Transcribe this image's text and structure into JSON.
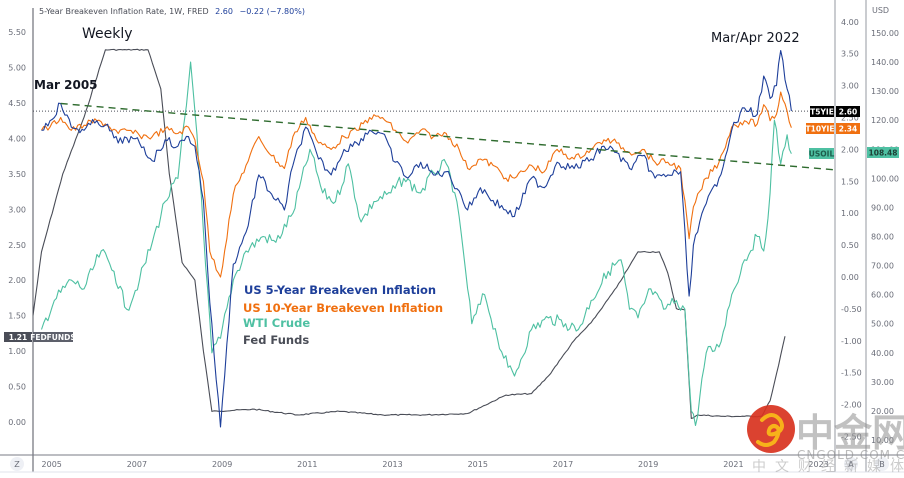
{
  "header": {
    "title": "5-Year Breakeven Inflation Rate, 1W, FRED",
    "last": "2.60",
    "change": "−0.22 (−7.80%)"
  },
  "annotations": {
    "weekly": "Weekly",
    "mar2005": "Mar 2005",
    "marapr2022": "Mar/Apr 2022"
  },
  "legend": [
    {
      "label": "US 5-Year Breakeven Inflation",
      "color": "#1e3f9a"
    },
    {
      "label": "US 10-Year Breakeven Inflation",
      "color": "#f07010"
    },
    {
      "label": "WTI Crude",
      "color": "#4ec0a2"
    },
    {
      "label": "Fed Funds",
      "color": "#4a4d57"
    }
  ],
  "badges": {
    "fedfunds": {
      "value": "1.21",
      "label": "FEDFUNDS"
    },
    "t5yie": {
      "label": "T5YIE",
      "value": "2.60"
    },
    "t10yie": {
      "label": "T10YIE",
      "value": "2.34"
    },
    "usoil": {
      "label": "USOIL",
      "value": "108.48"
    }
  },
  "bottom_bar": {
    "z_button": "Z",
    "a_button": "A",
    "b_button": "B"
  },
  "watermark": {
    "cn": "中金网",
    "en": "CNGOLD.COM.CN",
    "sub": "中文财经新媒体"
  },
  "colors": {
    "t5yie": "#1e3f9a",
    "t10yie": "#f07010",
    "wti": "#4ec0a2",
    "fedfunds": "#4a4d57",
    "trendline": "#2e6b2e"
  },
  "chart_data": {
    "type": "line",
    "title": "5-Year Breakeven Inflation Rate, 1W, FRED",
    "x_ticks": [
      "2005",
      "2007",
      "2009",
      "2011",
      "2013",
      "2015",
      "2017",
      "2019",
      "2021",
      "2023"
    ],
    "x_range": [
      2004.8,
      2023.6
    ],
    "axes": {
      "left": {
        "ticks": [
          "5.50",
          "5.00",
          "4.50",
          "4.00",
          "3.50",
          "3.00",
          "2.50",
          "2.00",
          "1.50",
          "1.00",
          "0.50",
          "0.00"
        ],
        "range": [
          -0.3,
          5.6
        ],
        "series": [
          "Fed Funds"
        ]
      },
      "right_a": {
        "ticks": [
          "4.00",
          "3.50",
          "3.00",
          "2.50",
          "2.00",
          "1.50",
          "1.00",
          "0.50",
          "0.00",
          "-0.50",
          "-1.00",
          "-1.50",
          "-2.00",
          "-2.50"
        ],
        "range": [
          -2.7,
          4.2
        ],
        "series": [
          "US 5-Year Breakeven Inflation",
          "US 10-Year Breakeven Inflation"
        ]
      },
      "right_b": {
        "unit": "USD",
        "ticks": [
          "150.00",
          "140.00",
          "130.00",
          "120.00",
          "110.00",
          "100.00",
          "90.00",
          "80.00",
          "70.00",
          "60.00",
          "50.00",
          "40.00",
          "30.00",
          "20.00",
          "10.00"
        ],
        "range": [
          5,
          155
        ],
        "series": [
          "WTI Crude"
        ]
      }
    },
    "series": [
      {
        "name": "US 5-Year Breakeven Inflation",
        "axis": "right_a",
        "x": [
          2005.0,
          2005.2,
          2005.45,
          2005.7,
          2006.0,
          2006.3,
          2006.5,
          2006.8,
          2007.0,
          2007.3,
          2007.6,
          2007.9,
          2008.2,
          2008.45,
          2008.6,
          2008.8,
          2008.95,
          2009.2,
          2009.5,
          2009.8,
          2010.1,
          2010.4,
          2010.7,
          2010.9,
          2011.2,
          2011.5,
          2011.8,
          2012.1,
          2012.4,
          2012.7,
          2013.0,
          2013.3,
          2013.6,
          2013.9,
          2014.2,
          2014.5,
          2014.8,
          2015.0,
          2015.3,
          2015.6,
          2015.9,
          2016.1,
          2016.5,
          2016.8,
          2017.1,
          2017.5,
          2017.9,
          2018.2,
          2018.5,
          2018.8,
          2019.1,
          2019.4,
          2019.7,
          2020.0,
          2020.2,
          2020.3,
          2020.6,
          2020.9,
          2021.2,
          2021.5,
          2021.8,
          2021.95,
          2022.1,
          2022.25,
          2022.35,
          2022.5,
          2022.6
        ],
        "y": [
          2.3,
          2.45,
          2.72,
          2.35,
          2.3,
          2.45,
          2.38,
          2.1,
          2.18,
          2.1,
          1.82,
          2.15,
          2.05,
          2.2,
          2.05,
          1.2,
          -0.4,
          -2.35,
          0.2,
          0.7,
          1.6,
          1.3,
          1.05,
          1.75,
          2.35,
          1.85,
          1.6,
          2.0,
          2.1,
          2.3,
          2.25,
          1.8,
          1.55,
          1.8,
          1.6,
          1.65,
          1.35,
          1.05,
          1.4,
          1.2,
          1.05,
          0.95,
          1.55,
          1.4,
          1.8,
          1.7,
          1.85,
          2.05,
          1.95,
          1.7,
          1.9,
          1.55,
          1.6,
          1.65,
          -0.3,
          0.5,
          1.15,
          1.55,
          2.3,
          2.65,
          2.55,
          3.15,
          2.8,
          3.0,
          3.55,
          2.95,
          2.6
        ]
      },
      {
        "name": "US 10-Year Breakeven Inflation",
        "axis": "right_a",
        "x": [
          2005.0,
          2005.2,
          2005.45,
          2005.7,
          2006.0,
          2006.3,
          2006.5,
          2006.8,
          2007.0,
          2007.3,
          2007.6,
          2007.9,
          2008.2,
          2008.45,
          2008.6,
          2008.8,
          2008.95,
          2009.2,
          2009.5,
          2009.8,
          2010.1,
          2010.4,
          2010.7,
          2010.9,
          2011.2,
          2011.5,
          2011.8,
          2012.1,
          2012.4,
          2012.7,
          2013.0,
          2013.3,
          2013.6,
          2013.9,
          2014.2,
          2014.5,
          2014.8,
          2015.0,
          2015.3,
          2015.6,
          2015.9,
          2016.1,
          2016.5,
          2016.8,
          2017.1,
          2017.5,
          2017.9,
          2018.2,
          2018.5,
          2018.8,
          2019.1,
          2019.4,
          2019.7,
          2020.0,
          2020.2,
          2020.3,
          2020.6,
          2020.9,
          2021.2,
          2021.5,
          2021.8,
          2021.95,
          2022.1,
          2022.25,
          2022.35,
          2022.5,
          2022.6
        ],
        "y": [
          2.3,
          2.35,
          2.5,
          2.3,
          2.38,
          2.45,
          2.4,
          2.25,
          2.3,
          2.22,
          2.2,
          2.32,
          2.25,
          2.35,
          2.15,
          1.5,
          0.4,
          0.0,
          1.3,
          1.75,
          2.2,
          1.9,
          1.7,
          2.2,
          2.5,
          2.1,
          2.0,
          2.2,
          2.3,
          2.5,
          2.5,
          2.3,
          2.1,
          2.3,
          2.2,
          2.25,
          2.0,
          1.7,
          1.85,
          1.75,
          1.55,
          1.55,
          1.75,
          1.65,
          2.0,
          1.85,
          2.0,
          2.15,
          2.1,
          1.95,
          2.0,
          1.8,
          1.8,
          1.7,
          0.6,
          1.1,
          1.55,
          1.8,
          2.35,
          2.45,
          2.4,
          2.7,
          2.45,
          2.55,
          2.9,
          2.6,
          2.34
        ]
      },
      {
        "name": "WTI Crude",
        "axis": "right_b",
        "x": [
          2005.0,
          2005.3,
          2005.7,
          2006.0,
          2006.4,
          2006.7,
          2007.0,
          2007.3,
          2007.6,
          2007.9,
          2008.2,
          2008.4,
          2008.5,
          2008.65,
          2008.85,
          2009.0,
          2009.2,
          2009.5,
          2009.8,
          2010.2,
          2010.5,
          2010.9,
          2011.3,
          2011.6,
          2011.9,
          2012.2,
          2012.5,
          2012.8,
          2013.2,
          2013.5,
          2013.9,
          2014.2,
          2014.5,
          2014.7,
          2014.9,
          2015.1,
          2015.4,
          2015.7,
          2015.95,
          2016.1,
          2016.5,
          2016.9,
          2017.3,
          2017.6,
          2017.9,
          2018.3,
          2018.6,
          2018.8,
          2019.0,
          2019.3,
          2019.6,
          2019.9,
          2020.1,
          2020.25,
          2020.35,
          2020.6,
          2020.9,
          2021.2,
          2021.5,
          2021.8,
          2021.95,
          2022.1,
          2022.2,
          2022.35,
          2022.5,
          2022.6
        ],
        "y": [
          48,
          58,
          65,
          62,
          75,
          68,
          55,
          65,
          78,
          92,
          100,
          125,
          140,
          115,
          70,
          40,
          45,
          65,
          75,
          80,
          78,
          88,
          110,
          95,
          92,
          105,
          85,
          92,
          95,
          100,
          95,
          102,
          105,
          95,
          75,
          50,
          60,
          45,
          35,
          32,
          48,
          52,
          50,
          48,
          58,
          68,
          72,
          55,
          52,
          62,
          55,
          58,
          55,
          20,
          15,
          40,
          42,
          60,
          72,
          80,
          75,
          95,
          120,
          105,
          115,
          108.48
        ]
      },
      {
        "name": "Fed Funds",
        "axis": "left",
        "x": [
          2004.8,
          2005.0,
          2005.5,
          2006.0,
          2006.5,
          2006.6,
          2007.0,
          2007.5,
          2007.8,
          2008.0,
          2008.3,
          2008.6,
          2008.8,
          2009.0,
          2010.0,
          2011.0,
          2012.0,
          2013.0,
          2014.0,
          2015.0,
          2015.9,
          2016.5,
          2016.9,
          2017.2,
          2017.5,
          2017.9,
          2018.2,
          2018.5,
          2018.8,
          2019.0,
          2019.5,
          2019.7,
          2019.9,
          2020.1,
          2020.25,
          2020.4,
          2021.0,
          2021.5,
          2021.9,
          2022.1,
          2022.3,
          2022.45
        ],
        "y": [
          1.5,
          2.4,
          3.5,
          4.3,
          5.25,
          5.25,
          5.25,
          5.25,
          4.7,
          3.5,
          2.25,
          2.0,
          1.0,
          0.15,
          0.18,
          0.1,
          0.15,
          0.1,
          0.1,
          0.12,
          0.38,
          0.4,
          0.65,
          0.9,
          1.15,
          1.4,
          1.65,
          1.9,
          2.2,
          2.4,
          2.4,
          2.1,
          1.6,
          1.58,
          0.05,
          0.1,
          0.08,
          0.08,
          0.08,
          0.3,
          0.8,
          1.21
        ]
      },
      {
        "name": "Trendline",
        "axis": "right_a",
        "style": "dashed",
        "x": [
          2005.45,
          2023.6
        ],
        "y": [
          2.72,
          1.68
        ]
      }
    ],
    "reference_line": {
      "axis": "right_a",
      "value": 2.6,
      "style": "dotted"
    },
    "legend_position": "center-left",
    "grid": false
  }
}
